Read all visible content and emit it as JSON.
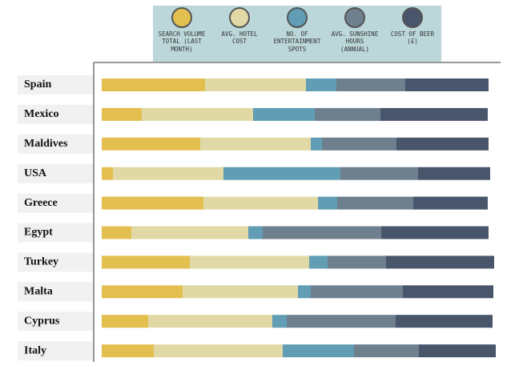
{
  "chart_data": {
    "type": "stacked-bar",
    "categories": [
      "Spain",
      "Mexico",
      "Maldives",
      "USA",
      "Greece",
      "Egypt",
      "Turkey",
      "Malta",
      "Cyprus",
      "Italy"
    ],
    "series": [
      {
        "name": "SEARCH VOLUME TOTAL (LAST MONTH)",
        "color": "#e3bf4f",
        "values": [
          129,
          50,
          123,
          14,
          127,
          37,
          110,
          101,
          58,
          65
        ]
      },
      {
        "name": "AVG. HOTEL COST",
        "color": "#e0d9a6",
        "values": [
          126,
          139,
          138,
          138,
          143,
          146,
          149,
          144,
          155,
          161
        ]
      },
      {
        "name": "NO. OF ENTERTAINMENT SPOTS",
        "color": "#619db4",
        "values": [
          38,
          77,
          14,
          146,
          24,
          18,
          23,
          16,
          18,
          89
        ]
      },
      {
        "name": "AVG. SUNSHINE HOURS (ANNUAL)",
        "color": "#6e7f8e",
        "values": [
          86,
          82,
          93,
          97,
          95,
          148,
          73,
          115,
          136,
          81
        ]
      },
      {
        "name": "COST OF BEER (£)",
        "color": "#48556a",
        "values": [
          104,
          134,
          115,
          90,
          93,
          134,
          135,
          113,
          121,
          96
        ]
      }
    ]
  }
}
